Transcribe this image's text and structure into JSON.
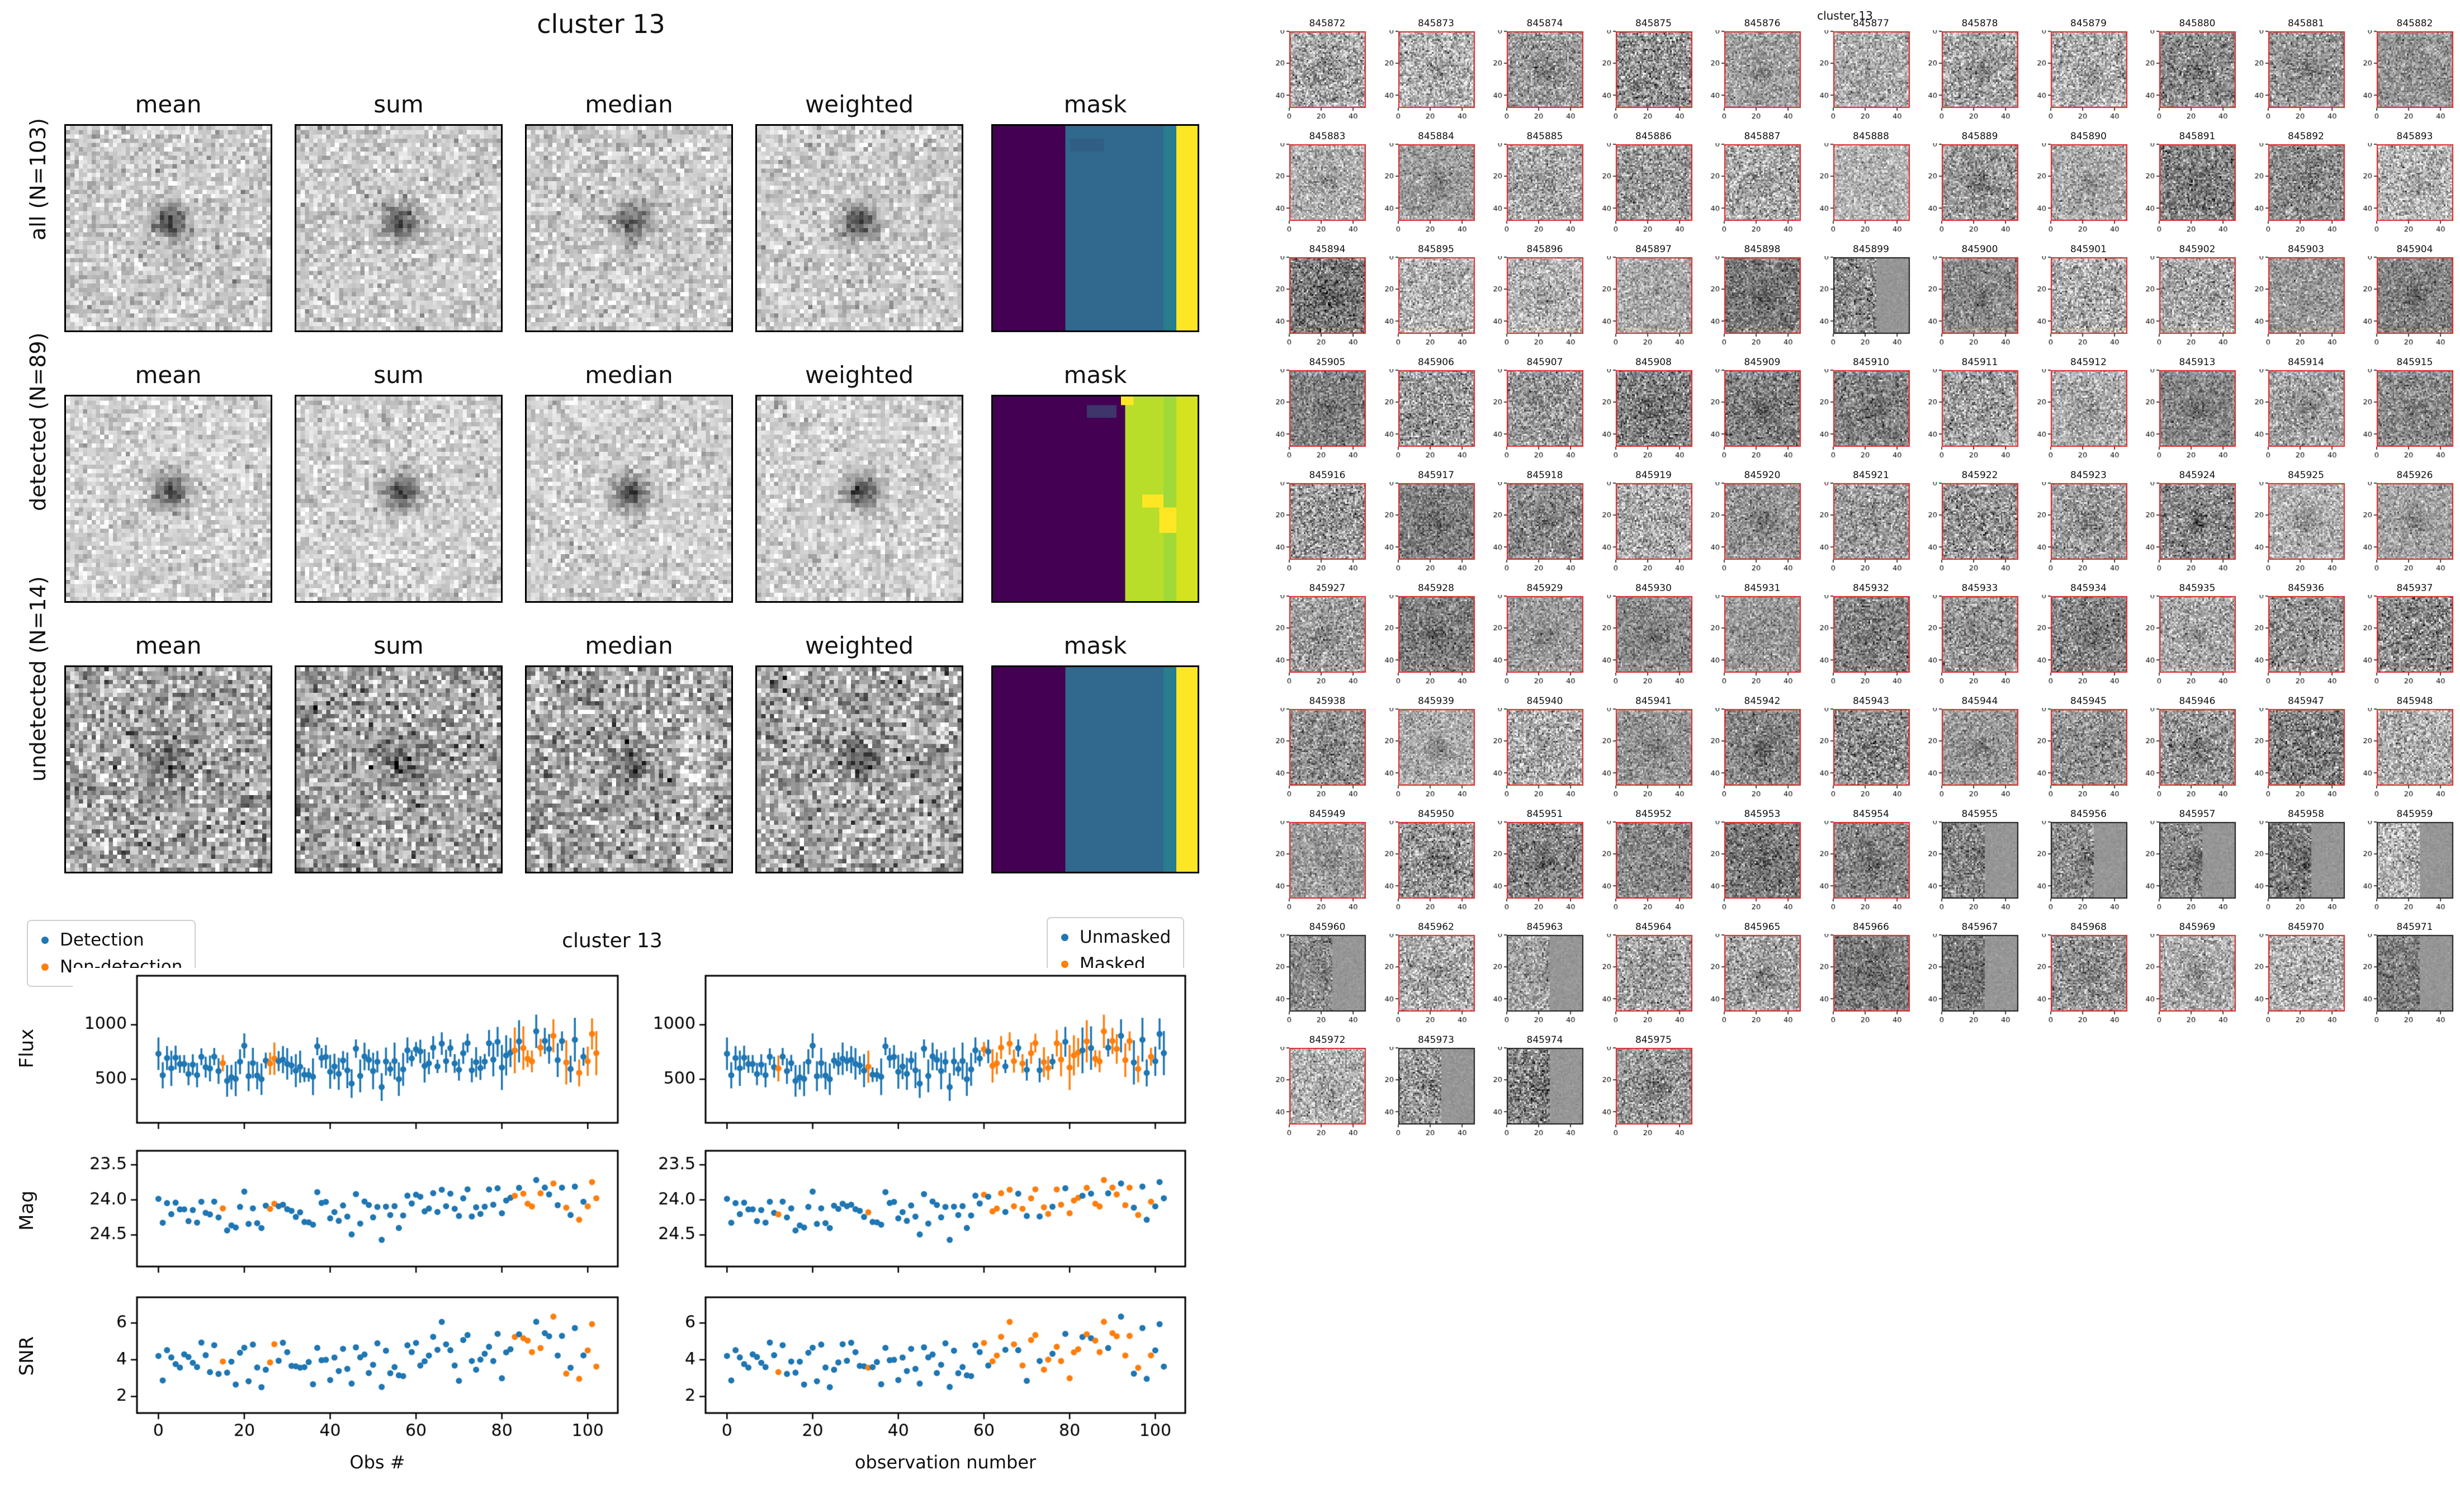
{
  "colors": {
    "blue": "#1f77b4",
    "orange": "#ff7f0e",
    "thumb_border_red": "#dd2222",
    "thumb_border_black": "#1a1a1a"
  },
  "cutout_figure": {
    "title": "cluster 13",
    "column_titles": [
      "mean",
      "sum",
      "median",
      "weighted",
      "mask"
    ],
    "rows": [
      {
        "label": "all (N=103)",
        "n": 103,
        "noise": {
          "base": 204,
          "amp": 26,
          "blob_depth": 120,
          "blob_sigma": 3.0,
          "seed": 11
        },
        "mask_bands": [
          [
            "#440154",
            17
          ],
          [
            "#31688e",
            23
          ],
          [
            "#287d8e",
            3
          ],
          [
            "#fde725",
            5
          ]
        ],
        "mask_patches": [
          {
            "c": "#2f5f85",
            "x": 18,
            "y": 3,
            "w": 8,
            "h": 3
          }
        ]
      },
      {
        "label": "detected (N=89)",
        "n": 89,
        "noise": {
          "base": 209,
          "amp": 24,
          "blob_depth": 138,
          "blob_sigma": 2.8,
          "seed": 22
        },
        "mask_bands": [
          [
            "#440154",
            31
          ],
          [
            "#b8de29",
            9
          ],
          [
            "#a0da39",
            3
          ],
          [
            "#d4e21f",
            5
          ]
        ],
        "mask_patches": [
          {
            "c": "#fde725",
            "x": 39,
            "y": 26,
            "w": 4,
            "h": 6
          },
          {
            "c": "#fde725",
            "x": 35,
            "y": 23,
            "w": 5,
            "h": 3
          },
          {
            "c": "#fde725",
            "x": 30,
            "y": 0,
            "w": 3,
            "h": 2
          },
          {
            "c": "#3e356b",
            "x": 22,
            "y": 2,
            "w": 7,
            "h": 3
          }
        ]
      },
      {
        "label": "undetected (N=14)",
        "n": 14,
        "noise": {
          "base": 170,
          "amp": 46,
          "blob_depth": 62,
          "blob_sigma": 4.0,
          "seed": 33
        },
        "mask_bands": [
          [
            "#440154",
            17
          ],
          [
            "#31688e",
            23
          ],
          [
            "#287d8e",
            3
          ],
          [
            "#fde725",
            5
          ]
        ],
        "mask_patches": [],
        "median_stripe": {
          "x": 36,
          "w": 6,
          "delta": 24
        }
      }
    ]
  },
  "chart_data": {
    "type": "scatter",
    "figure_title": "cluster 13",
    "n_points": 103,
    "x_range": [
      0,
      102
    ],
    "xlim": [
      -5,
      107
    ],
    "seed": 1337,
    "grid": false,
    "legend_left": {
      "position": "upper-left",
      "items": [
        {
          "label": "Detection",
          "color": "#1f77b4"
        },
        {
          "label": "Non-detection",
          "color": "#ff7f0e"
        }
      ]
    },
    "legend_right": {
      "position": "upper-right",
      "items": [
        {
          "label": "Unmasked",
          "color": "#1f77b4"
        },
        {
          "label": "Masked",
          "color": "#ff7f0e"
        }
      ]
    },
    "xticks": [
      0,
      20,
      40,
      60,
      80,
      100
    ],
    "xtick_labels": [
      "0",
      "20",
      "40",
      "60",
      "80",
      "100"
    ],
    "xlabel_left": "Obs #",
    "xlabel_right": "observation number",
    "rows": [
      {
        "ylabel": "Flux",
        "kind": "errorbar",
        "ylim": [
          100,
          1450
        ],
        "yticks": [
          500,
          1000
        ],
        "ytick_labels": [
          "500",
          "1000"
        ],
        "inverted": false
      },
      {
        "ylabel": "Mag",
        "kind": "scatter",
        "ylim": [
          23.3,
          24.95
        ],
        "yticks": [
          23.5,
          24.0,
          24.5
        ],
        "ytick_labels": [
          "23.5",
          "24.0",
          "24.5"
        ],
        "inverted": true
      },
      {
        "ylabel": "SNR",
        "kind": "scatter",
        "ylim": [
          1.1,
          7.4
        ],
        "yticks": [
          2,
          4,
          6
        ],
        "ytick_labels": [
          "2",
          "4",
          "6"
        ],
        "inverted": false
      }
    ],
    "flux_model": {
      "mean_level": 700,
      "dip_center": 25,
      "dip_depth": 120,
      "dip_sigma": 15,
      "late_bump_center": 90,
      "late_bump": 40,
      "noise_sigma": 95,
      "err_min": 60,
      "err_span": 110,
      "late_scatter_start": 88,
      "late_extra_sigma": 90
    },
    "mag_zeropoint": 31.15,
    "snr_scale": 160,
    "snr_sigma": 0.45,
    "orange_left": [
      15,
      26,
      27,
      83,
      85,
      86,
      87,
      89,
      92,
      95,
      98,
      100,
      101,
      102
    ],
    "orange_right": [
      12,
      33,
      60,
      62,
      63,
      64,
      66,
      67,
      69,
      71,
      72,
      74,
      75,
      77,
      78,
      80,
      81,
      82,
      84,
      86,
      87,
      88,
      90,
      91,
      93,
      94,
      96,
      99
    ]
  },
  "thumbnail_figure": {
    "suptitle": "cluster 13",
    "axis_ticks": [
      0,
      20,
      40
    ],
    "img_n": 48,
    "ids": [
      845872,
      845873,
      845874,
      845875,
      845876,
      845877,
      845878,
      845879,
      845880,
      845881,
      845882,
      845883,
      845884,
      845885,
      845886,
      845887,
      845888,
      845889,
      845890,
      845891,
      845892,
      845893,
      845894,
      845895,
      845896,
      845897,
      845898,
      845899,
      845900,
      845901,
      845902,
      845903,
      845904,
      845905,
      845906,
      845907,
      845908,
      845909,
      845910,
      845911,
      845912,
      845913,
      845914,
      845915,
      845916,
      845917,
      845918,
      845919,
      845920,
      845921,
      845922,
      845923,
      845924,
      845925,
      845926,
      845927,
      845928,
      845929,
      845930,
      845931,
      845932,
      845933,
      845934,
      845935,
      845936,
      845937,
      845938,
      845939,
      845940,
      845941,
      845942,
      845943,
      845944,
      845945,
      845946,
      845947,
      845948,
      845949,
      845950,
      845951,
      845952,
      845953,
      845954,
      845955,
      845956,
      845957,
      845958,
      845959,
      845960,
      845962,
      845963,
      845964,
      845965,
      845966,
      845967,
      845968,
      845969,
      845970,
      845971,
      845972,
      845973,
      845974,
      845975
    ],
    "black_border_ids": [
      845899,
      845955,
      845956,
      845957,
      845958,
      845959,
      845960,
      845963,
      845967,
      845971,
      845973,
      845974
    ]
  }
}
